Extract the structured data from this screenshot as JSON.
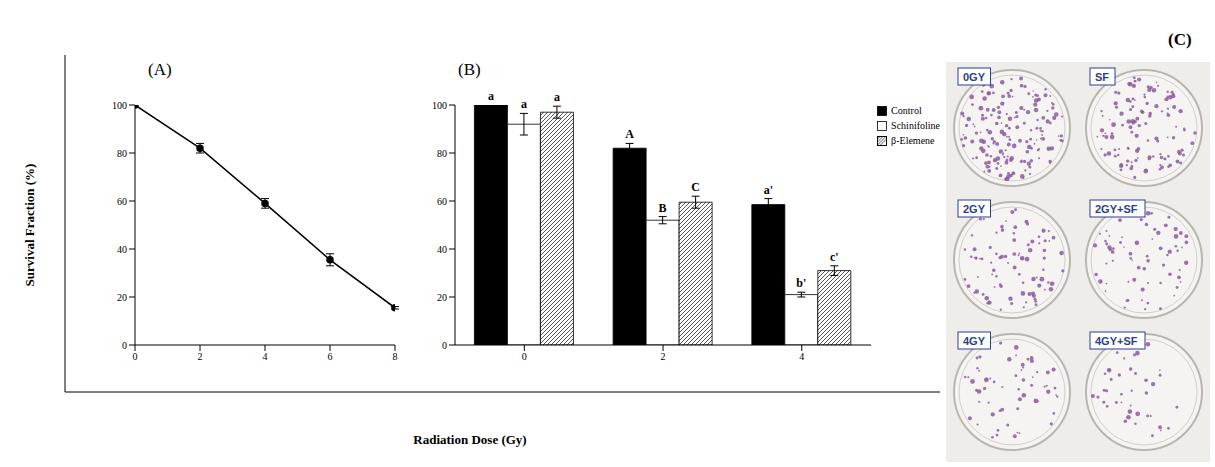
{
  "ylabel": "Survival Fraction (%)",
  "xlabel": "Radiation Dose (Gy)",
  "chart_data": [
    {
      "type": "line",
      "title": "(A)",
      "x": [
        0,
        2,
        4,
        6,
        8
      ],
      "values": [
        100,
        82,
        59,
        35.5,
        15.5
      ],
      "errors": [
        0,
        2,
        2,
        2.5,
        0.5
      ],
      "color": "#000000",
      "marker": "circle",
      "xlim": [
        0,
        8
      ],
      "xticks": [
        0,
        2,
        4,
        6,
        8
      ],
      "ylim": [
        0,
        100
      ],
      "yticks": [
        0,
        20,
        40,
        60,
        80,
        100
      ],
      "grid": false
    },
    {
      "type": "bar",
      "title": "(B)",
      "categories": [
        "0",
        "2",
        "4"
      ],
      "series": [
        {
          "name": "Control",
          "color": "#000000",
          "values": [
            100,
            82,
            58.5
          ],
          "errors": [
            0,
            2,
            2.5
          ],
          "letters": [
            "a",
            "A",
            "a'"
          ]
        },
        {
          "name": "Schinifoline",
          "color": "#ffffff",
          "values": [
            92,
            52,
            21
          ],
          "errors": [
            4.5,
            1.5,
            1
          ],
          "letters": [
            "a",
            "B",
            "b'"
          ]
        },
        {
          "name": "β-Elemene",
          "color": "#555555",
          "values": [
            97,
            59.5,
            31
          ],
          "errors": [
            2.5,
            2.5,
            2
          ],
          "letters": [
            "a",
            "C",
            "c'"
          ]
        }
      ],
      "ylim": [
        0,
        100
      ],
      "yticks": [
        0,
        20,
        40,
        60,
        80,
        100
      ],
      "legend": "top-right",
      "grid": false
    }
  ],
  "panel_c": {
    "title": "(C)",
    "labels": [
      "0GY",
      "SF",
      "2GY",
      "2GY+SF",
      "4GY",
      "4GY+SF"
    ]
  }
}
